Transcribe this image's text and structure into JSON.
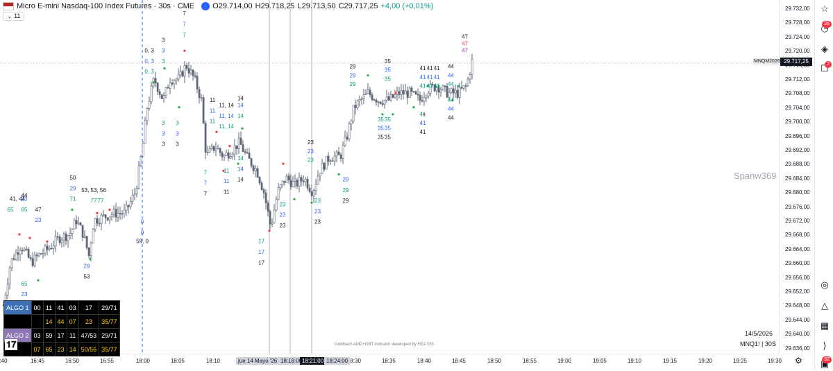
{
  "header": {
    "title": "Micro E-mini Nasdaq-100 Index Futures · 30s · CME",
    "open": "O29.714,00",
    "high": "H29.718,25",
    "low": "L29.713,50",
    "close": "C29.717,25",
    "change": "+4,00 (+0,01%)",
    "collapse_label": "11"
  },
  "colors": {
    "up": "#089981",
    "down": "#3d4250",
    "candle": "#5d6675",
    "green_dot": "#22ab4f",
    "red_dot": "#f23645",
    "blue": "#2962ff",
    "purple": "#9c27b0"
  },
  "price_axis": {
    "labels": [
      "29.732,00",
      "29.728,00",
      "29.724,00",
      "29.720,00",
      "29.716,00",
      "29.712,00",
      "29.708,00",
      "29.704,00",
      "29.700,00",
      "29.696,00",
      "29.692,00",
      "29.688,00",
      "29.684,00",
      "29.680,00",
      "29.676,00",
      "29.672,00",
      "29.668,00",
      "29.664,00",
      "29.660,00",
      "29.656,00",
      "29.652,00",
      "29.648,00",
      "29.644,00",
      "29.640,00",
      "29.636,00"
    ],
    "current_price": "29.717,25",
    "current_symbol": "MNQM2026"
  },
  "time_axis": {
    "labels": [
      ":40",
      "16:45",
      "16:50",
      "16:55",
      "18:00",
      "18:05",
      "18:10",
      "18:30",
      "18:35",
      "18:40",
      "18:45",
      "18:50",
      "18:55",
      "19:00",
      "19:05",
      "19:10",
      "19:15",
      "19:20",
      "19:25",
      "19:30"
    ],
    "highlight_date": "jue 14 Mayo '26",
    "highlight_1": "18:18:00",
    "highlight_2": "18:21:00",
    "highlight_3": "18:24:00"
  },
  "watermark": "Spanw369",
  "credit": "Goldbach AMD+GBT indicator developed by HZA 333",
  "date_label": "14/5/2026",
  "bottom_symbol": "MNQ1! | 30S",
  "right_toolbar": {
    "badge_1": "26",
    "badge_2": "2",
    "badge_3": "32"
  },
  "algo_table": {
    "row1": {
      "label": "ALGO 1",
      "cells": [
        "00",
        "11",
        "41",
        "03",
        "17",
        "29/71"
      ]
    },
    "row2": {
      "label": "",
      "cells": [
        "14",
        "44",
        "07",
        "23",
        "35/77"
      ]
    },
    "row3": {
      "label": "ALGO 2",
      "cells": [
        "03",
        "59",
        "17",
        "11",
        "47/53",
        "29/71"
      ]
    },
    "row4": {
      "label": "",
      "cells": [
        "07",
        "65",
        "23",
        "14",
        "50/56",
        "35/77"
      ]
    }
  },
  "chart_data": {
    "type": "candlestick",
    "y_range": [
      29634,
      29734
    ],
    "annotations": [
      {
        "x": "16:42",
        "price": 29677.5,
        "text": "41, 44",
        "color": "black"
      },
      {
        "x": "16:43",
        "price": 29677.5,
        "text": "23",
        "color": "blue"
      },
      {
        "x": "16:43",
        "price": 29678.5,
        "text": "44",
        "color": "black"
      },
      {
        "x": "16:41",
        "price": 29674.5,
        "text": "65",
        "color": "green"
      },
      {
        "x": "16:43",
        "price": 29674.5,
        "text": "65",
        "color": "green"
      },
      {
        "x": "16:45",
        "price": 29674.5,
        "text": "47",
        "color": "black"
      },
      {
        "x": "16:45",
        "price": 29671.5,
        "text": "23",
        "color": "blue"
      },
      {
        "x": "16:43",
        "price": 29653.5,
        "text": "65",
        "color": "green"
      },
      {
        "x": "16:43",
        "price": 29650.5,
        "text": "23",
        "color": "blue"
      },
      {
        "x": "16:50",
        "price": 29683.5,
        "text": "50",
        "color": "black"
      },
      {
        "x": "16:50",
        "price": 29680.5,
        "text": "29",
        "color": "blue"
      },
      {
        "x": "16:50",
        "price": 29677.5,
        "text": "71",
        "color": "green"
      },
      {
        "x": "16:53",
        "price": 29680.0,
        "text": "53, 53, 56",
        "color": "black"
      },
      {
        "x": "16:53",
        "price": 29677.0,
        "text": "77",
        "color": "green"
      },
      {
        "x": "16:54",
        "price": 29677.0,
        "text": "77",
        "color": "green"
      },
      {
        "x": "16:52",
        "price": 29658.5,
        "text": "29",
        "color": "blue"
      },
      {
        "x": "16:52",
        "price": 29655.5,
        "text": "53",
        "color": "black"
      },
      {
        "x": "18:00",
        "price": 29671.0,
        "text": "0",
        "color": "blue"
      },
      {
        "x": "18:00",
        "price": 29668.0,
        "text": "0",
        "color": "blue"
      },
      {
        "x": "18:00",
        "price": 29665.5,
        "text": "59, 0",
        "color": "black"
      },
      {
        "x": "18:01",
        "price": 29719.5,
        "text": "0, 3",
        "color": "black"
      },
      {
        "x": "18:01",
        "price": 29716.5,
        "text": "0, 3",
        "color": "blue"
      },
      {
        "x": "18:01",
        "price": 29713.5,
        "text": "0, 3",
        "color": "green"
      },
      {
        "x": "18:03",
        "price": 29722.5,
        "text": "3",
        "color": "black"
      },
      {
        "x": "18:03",
        "price": 29719.5,
        "text": "3",
        "color": "blue"
      },
      {
        "x": "18:03",
        "price": 29716.5,
        "text": "3",
        "color": "green"
      },
      {
        "x": "18:06",
        "price": 29730.0,
        "text": "7",
        "color": "black"
      },
      {
        "x": "18:06",
        "price": 29727.0,
        "text": "7",
        "color": "blue"
      },
      {
        "x": "18:06",
        "price": 29724.0,
        "text": "7",
        "color": "green"
      },
      {
        "x": "18:03",
        "price": 29699.0,
        "text": "3",
        "color": "green"
      },
      {
        "x": "18:03",
        "price": 29696.0,
        "text": "3",
        "color": "blue"
      },
      {
        "x": "18:03",
        "price": 29693.0,
        "text": "3",
        "color": "black"
      },
      {
        "x": "18:05",
        "price": 29699.0,
        "text": "3",
        "color": "green"
      },
      {
        "x": "18:05",
        "price": 29696.0,
        "text": "3",
        "color": "blue"
      },
      {
        "x": "18:05",
        "price": 29693.0,
        "text": "3",
        "color": "black"
      },
      {
        "x": "18:09",
        "price": 29685.0,
        "text": "7",
        "color": "green"
      },
      {
        "x": "18:09",
        "price": 29682.0,
        "text": "7",
        "color": "blue"
      },
      {
        "x": "18:09",
        "price": 29679.0,
        "text": "7",
        "color": "black"
      },
      {
        "x": "18:10",
        "price": 29705.5,
        "text": "11",
        "color": "black"
      },
      {
        "x": "18:10",
        "price": 29702.5,
        "text": "11",
        "color": "blue"
      },
      {
        "x": "18:10",
        "price": 29699.5,
        "text": "11",
        "color": "green"
      },
      {
        "x": "18:12",
        "price": 29704.0,
        "text": "11, 14",
        "color": "black"
      },
      {
        "x": "18:12",
        "price": 29701.0,
        "text": "11, 14",
        "color": "blue"
      },
      {
        "x": "18:12",
        "price": 29698.0,
        "text": "11, 14",
        "color": "green"
      },
      {
        "x": "18:14",
        "price": 29706.0,
        "text": "14",
        "color": "black"
      },
      {
        "x": "18:14",
        "price": 29704.0,
        "text": "14",
        "color": "blue"
      },
      {
        "x": "18:14",
        "price": 29701.0,
        "text": "14",
        "color": "green"
      },
      {
        "x": "18:12",
        "price": 29685.5,
        "text": "11",
        "color": "green"
      },
      {
        "x": "18:12",
        "price": 29682.5,
        "text": "11",
        "color": "blue"
      },
      {
        "x": "18:12",
        "price": 29679.5,
        "text": "11",
        "color": "black"
      },
      {
        "x": "18:14",
        "price": 29689.0,
        "text": "14",
        "color": "green"
      },
      {
        "x": "18:14",
        "price": 29686.0,
        "text": "14",
        "color": "blue"
      },
      {
        "x": "18:14",
        "price": 29683.0,
        "text": "14",
        "color": "black"
      },
      {
        "x": "18:17",
        "price": 29665.5,
        "text": "17",
        "color": "green"
      },
      {
        "x": "18:17",
        "price": 29662.5,
        "text": "17",
        "color": "blue"
      },
      {
        "x": "18:17",
        "price": 29659.5,
        "text": "17",
        "color": "black"
      },
      {
        "x": "18:20",
        "price": 29676.0,
        "text": "23",
        "color": "green"
      },
      {
        "x": "18:20",
        "price": 29673.0,
        "text": "23",
        "color": "blue"
      },
      {
        "x": "18:20",
        "price": 29670.0,
        "text": "23",
        "color": "black"
      },
      {
        "x": "18:24",
        "price": 29693.5,
        "text": "23",
        "color": "black"
      },
      {
        "x": "18:24",
        "price": 29691.0,
        "text": "23",
        "color": "blue"
      },
      {
        "x": "18:24",
        "price": 29688.5,
        "text": "23",
        "color": "green"
      },
      {
        "x": "18:25",
        "price": 29677.0,
        "text": "23",
        "color": "green"
      },
      {
        "x": "18:25",
        "price": 29674.0,
        "text": "23",
        "color": "blue"
      },
      {
        "x": "18:25",
        "price": 29671.0,
        "text": "23",
        "color": "black"
      },
      {
        "x": "18:29",
        "price": 29683.0,
        "text": "29",
        "color": "blue"
      },
      {
        "x": "18:29",
        "price": 29680.0,
        "text": "29",
        "color": "green"
      },
      {
        "x": "18:29",
        "price": 29677.0,
        "text": "29",
        "color": "black"
      },
      {
        "x": "18:30",
        "price": 29715.0,
        "text": "29",
        "color": "black"
      },
      {
        "x": "18:30",
        "price": 29712.5,
        "text": "29",
        "color": "blue"
      },
      {
        "x": "18:30",
        "price": 29710.0,
        "text": "29",
        "color": "green"
      },
      {
        "x": "18:35",
        "price": 29716.5,
        "text": "35",
        "color": "black"
      },
      {
        "x": "18:35",
        "price": 29714.0,
        "text": "35",
        "color": "blue"
      },
      {
        "x": "18:35",
        "price": 29711.5,
        "text": "35",
        "color": "green"
      },
      {
        "x": "18:34",
        "price": 29700.0,
        "text": "35",
        "color": "green"
      },
      {
        "x": "18:34",
        "price": 29697.5,
        "text": "35",
        "color": "blue"
      },
      {
        "x": "18:34",
        "price": 29695.0,
        "text": "35",
        "color": "black"
      },
      {
        "x": "18:35",
        "price": 29700.0,
        "text": "35",
        "color": "green"
      },
      {
        "x": "18:35",
        "price": 29697.5,
        "text": "35",
        "color": "blue"
      },
      {
        "x": "18:35",
        "price": 29695.0,
        "text": "35",
        "color": "black"
      },
      {
        "x": "18:40",
        "price": 29714.5,
        "text": "41",
        "color": "black"
      },
      {
        "x": "18:40",
        "price": 29712.0,
        "text": "41",
        "color": "blue"
      },
      {
        "x": "18:40",
        "price": 29709.5,
        "text": "41",
        "color": "green"
      },
      {
        "x": "18:41",
        "price": 29714.5,
        "text": "41",
        "color": "black"
      },
      {
        "x": "18:41",
        "price": 29712.0,
        "text": "41",
        "color": "blue"
      },
      {
        "x": "18:41",
        "price": 29709.5,
        "text": "41",
        "color": "green"
      },
      {
        "x": "18:42",
        "price": 29714.5,
        "text": "41",
        "color": "black"
      },
      {
        "x": "18:42",
        "price": 29712.0,
        "text": "41",
        "color": "blue"
      },
      {
        "x": "18:42",
        "price": 29709.5,
        "text": "41",
        "color": "green"
      },
      {
        "x": "18:40",
        "price": 29701.5,
        "text": "41",
        "color": "green"
      },
      {
        "x": "18:40",
        "price": 29699.0,
        "text": "41",
        "color": "blue"
      },
      {
        "x": "18:40",
        "price": 29696.5,
        "text": "41",
        "color": "black"
      },
      {
        "x": "18:44",
        "price": 29715.0,
        "text": "44",
        "color": "black"
      },
      {
        "x": "18:44",
        "price": 29712.5,
        "text": "44",
        "color": "blue"
      },
      {
        "x": "18:44",
        "price": 29710.0,
        "text": "44",
        "color": "green"
      },
      {
        "x": "18:44",
        "price": 29705.5,
        "text": "44",
        "color": "green"
      },
      {
        "x": "18:44",
        "price": 29703.0,
        "text": "44",
        "color": "blue"
      },
      {
        "x": "18:44",
        "price": 29700.5,
        "text": "44",
        "color": "black"
      },
      {
        "x": "18:46",
        "price": 29723.5,
        "text": "47",
        "color": "black"
      },
      {
        "x": "18:46",
        "price": 29721.5,
        "text": "47",
        "color": "red"
      },
      {
        "x": "18:46",
        "price": 29719.5,
        "text": "47",
        "color": "purple"
      }
    ]
  }
}
